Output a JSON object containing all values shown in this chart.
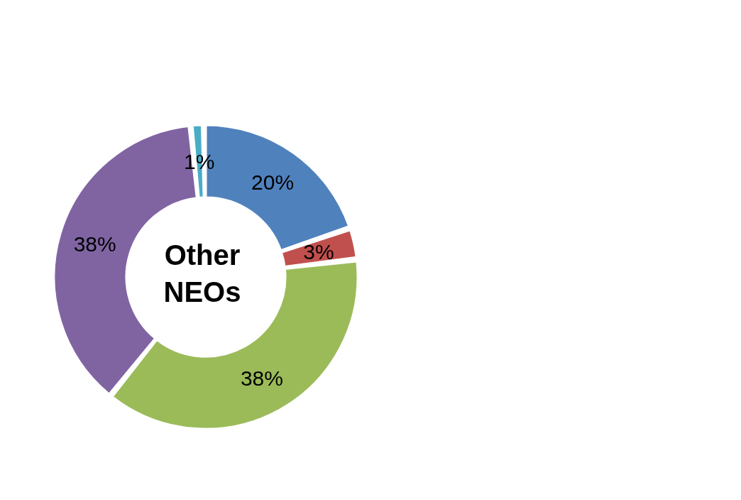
{
  "chart_data": {
    "type": "donut",
    "title": "Other NEOs",
    "categories": [
      null,
      null,
      null,
      null,
      null
    ],
    "values": [
      20,
      3,
      38,
      38,
      1
    ],
    "colors": [
      "#4f81bd",
      "#c0504d",
      "#9bbb59",
      "#8064a2",
      "#4bacc6"
    ],
    "value_labels": [
      "20%",
      "3%",
      "38%",
      "38%",
      "1%"
    ],
    "legend": false
  }
}
